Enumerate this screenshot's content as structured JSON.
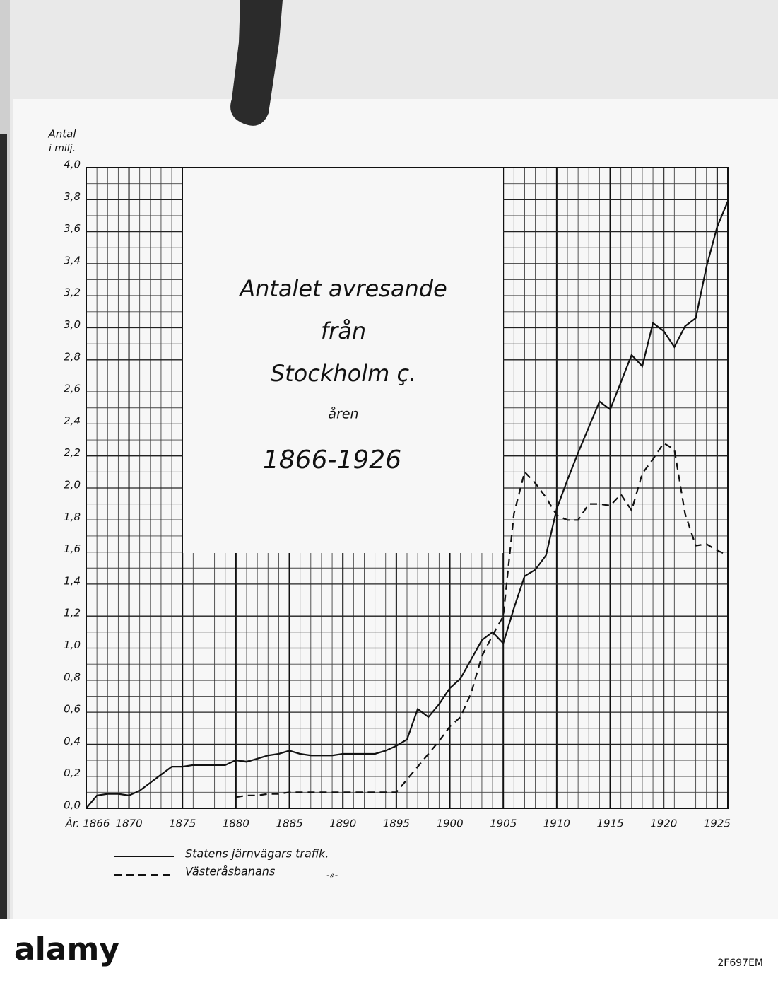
{
  "chart_data": {
    "type": "line",
    "title_lines": [
      "Antalet avresande",
      "från",
      "Stockholm ç.",
      "åren",
      "1866-1926"
    ],
    "y_label_lines": [
      "Antal",
      "i milj."
    ],
    "x": [
      1866,
      1867,
      1868,
      1869,
      1870,
      1871,
      1872,
      1873,
      1874,
      1875,
      1876,
      1877,
      1878,
      1879,
      1880,
      1881,
      1882,
      1883,
      1884,
      1885,
      1886,
      1887,
      1888,
      1889,
      1890,
      1891,
      1892,
      1893,
      1894,
      1895,
      1896,
      1897,
      1898,
      1899,
      1900,
      1901,
      1902,
      1903,
      1904,
      1905,
      1906,
      1907,
      1908,
      1909,
      1910,
      1911,
      1912,
      1913,
      1914,
      1915,
      1916,
      1917,
      1918,
      1919,
      1920,
      1921,
      1922,
      1923,
      1924,
      1925,
      1926
    ],
    "series": [
      {
        "name": "Statens järnvägars trafik.",
        "color": "#111111",
        "dash": "solid",
        "values": [
          0.0,
          0.08,
          0.09,
          0.09,
          0.08,
          0.11,
          0.16,
          0.21,
          0.26,
          0.26,
          0.27,
          0.27,
          0.27,
          0.27,
          0.3,
          0.29,
          0.31,
          0.33,
          0.34,
          0.36,
          0.34,
          0.33,
          0.33,
          0.33,
          0.34,
          0.34,
          0.34,
          0.34,
          0.36,
          0.39,
          0.43,
          0.62,
          0.57,
          0.65,
          0.75,
          0.81,
          0.93,
          1.05,
          1.1,
          1.03,
          1.25,
          1.45,
          1.49,
          1.58,
          1.87,
          2.05,
          2.22,
          2.38,
          2.54,
          2.49,
          2.66,
          2.83,
          2.76,
          3.03,
          2.98,
          2.88,
          3.01,
          3.06,
          3.38,
          3.63,
          3.79
        ]
      },
      {
        "name": "Västeråsbanans",
        "color": "#111111",
        "dash": "dashed",
        "values": [
          null,
          null,
          null,
          null,
          null,
          null,
          null,
          null,
          null,
          null,
          null,
          null,
          null,
          null,
          0.07,
          0.08,
          0.08,
          0.09,
          0.09,
          0.1,
          0.1,
          0.1,
          0.1,
          0.1,
          0.1,
          0.1,
          0.1,
          0.1,
          0.1,
          0.1,
          0.18,
          0.26,
          0.34,
          0.42,
          0.51,
          0.57,
          0.72,
          0.95,
          1.08,
          1.2,
          1.84,
          2.1,
          2.03,
          1.94,
          1.83,
          1.8,
          1.8,
          1.9,
          1.9,
          1.89,
          1.96,
          1.86,
          2.09,
          2.18,
          2.28,
          2.24,
          1.84,
          1.64,
          1.65,
          1.61,
          1.58
        ]
      }
    ],
    "legend_ditto": "-»-",
    "xlim": [
      1866,
      1926
    ],
    "xticks": [
      {
        "value": 1866,
        "label": "År. 1866"
      },
      1870,
      1875,
      1880,
      1885,
      1890,
      1895,
      1900,
      1905,
      1910,
      1915,
      1920,
      1925
    ],
    "ylim": [
      0,
      4
    ],
    "yticks": [
      {
        "value": 0,
        "label": "0,0"
      },
      {
        "value": 0.2,
        "label": "0,2"
      },
      {
        "value": 0.4,
        "label": "0,4"
      },
      {
        "value": 0.6,
        "label": "0,6"
      },
      {
        "value": 0.8,
        "label": "0,8"
      },
      {
        "value": 1,
        "label": "1,0"
      },
      {
        "value": 1.2,
        "label": "1,2"
      },
      {
        "value": 1.4,
        "label": "1,4"
      },
      {
        "value": 1.6,
        "label": "1,6"
      },
      {
        "value": 1.8,
        "label": "1,8"
      },
      {
        "value": 2,
        "label": "2,0"
      },
      {
        "value": 2.2,
        "label": "2,2"
      },
      {
        "value": 2.4,
        "label": "2,4"
      },
      {
        "value": 2.6,
        "label": "2,6"
      },
      {
        "value": 2.8,
        "label": "2,8"
      },
      {
        "value": 3,
        "label": "3,0"
      },
      {
        "value": 3.2,
        "label": "3,2"
      },
      {
        "value": 3.4,
        "label": "3,4"
      },
      {
        "value": 3.6,
        "label": "3,6"
      },
      {
        "value": 3.8,
        "label": "3,8"
      },
      {
        "value": 4,
        "label": "4,0"
      }
    ],
    "x_minor_step": 1,
    "y_minor_step": 0.1,
    "grid": true
  },
  "watermark": {
    "logo": "alamy",
    "id": "2F697EM"
  }
}
